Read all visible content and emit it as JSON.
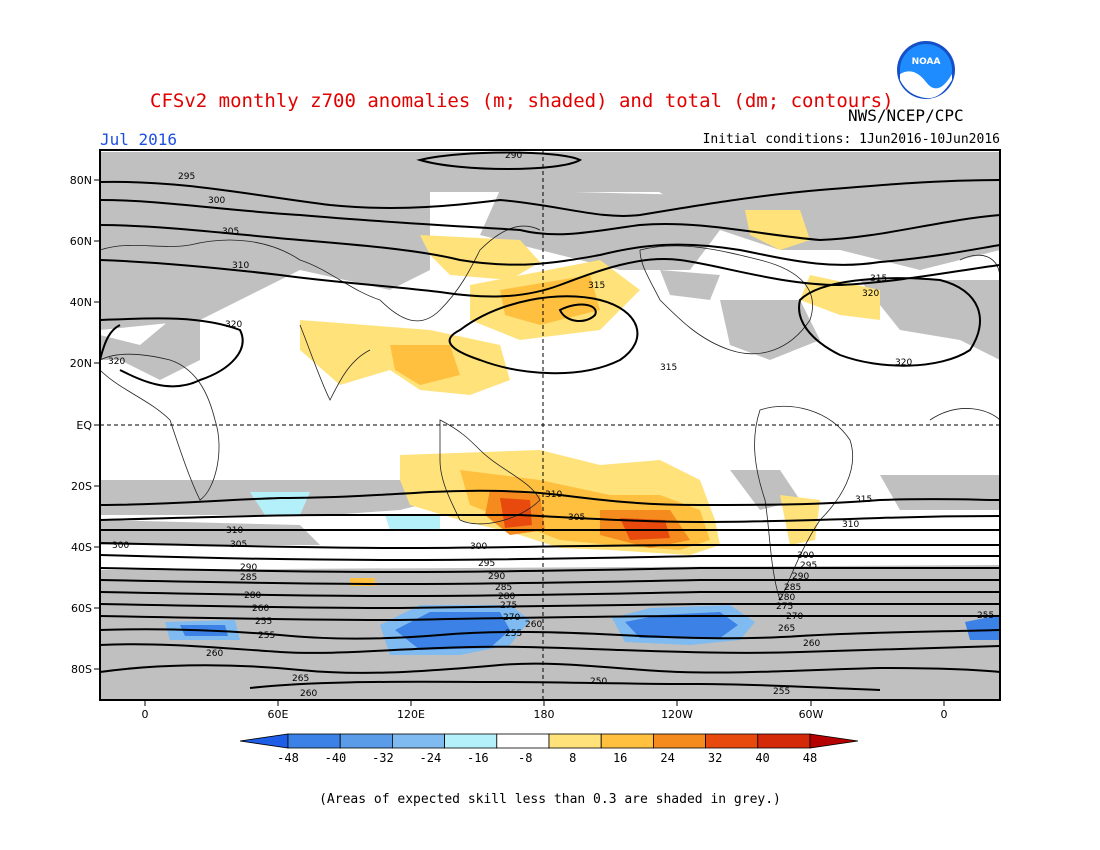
{
  "header": {
    "title": "CFSv2 monthly z700 anomalies (m; shaded) and total (dm; contours)",
    "agency": "NWS/NCEP/CPC",
    "month": "Jul 2016",
    "initial_conditions": "Initial conditions: 1Jun2016-10Jun2016",
    "logo_text": "NOAA"
  },
  "axes": {
    "lat_labels": [
      "80N",
      "60N",
      "40N",
      "20N",
      "EQ",
      "20S",
      "40S",
      "60S",
      "80S"
    ],
    "lon_labels": [
      "0",
      "60E",
      "120E",
      "180",
      "120W",
      "60W",
      "0"
    ]
  },
  "colors": {
    "skill_grey": "#c0c0c0",
    "pos_8_16": "#ffe27a",
    "pos_16_24": "#ffc040",
    "pos_24_32": "#f58a1e",
    "pos_32_40": "#e84a0e",
    "neg_8_16": "#b4f0fa",
    "neg_16_24": "#96d0f5",
    "neg_24_32": "#5aaae8",
    "neg_32_40": "#3c82e6",
    "neg_40_48": "#1e5ee6"
  },
  "contour_labels": [
    "290",
    "295",
    "300",
    "305",
    "310",
    "315",
    "320",
    "310",
    "315",
    "300",
    "295",
    "290",
    "285",
    "280",
    "275",
    "270",
    "265",
    "260",
    "255",
    "250"
  ],
  "colorbar": {
    "ticks": [
      "-48",
      "-40",
      "-32",
      "-24",
      "-16",
      "-8",
      "8",
      "16",
      "24",
      "32",
      "40",
      "48"
    ],
    "colors": [
      "#1e5ee6",
      "#3c82e6",
      "#5a9ce8",
      "#7fbaf0",
      "#b4f0fa",
      "#ffffff",
      "#ffe27a",
      "#ffc040",
      "#f58a1e",
      "#e84a0e",
      "#d42a0a",
      "#b40000"
    ]
  },
  "footnote": "(Areas of expected skill less than 0.3 are shaded in grey.)"
}
